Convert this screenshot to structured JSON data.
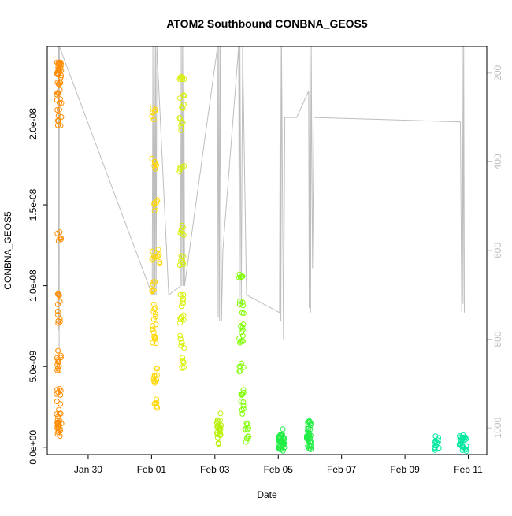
{
  "chart_data": {
    "type": "scatter",
    "title": "ATOM2 Southbound CONBNA_GEOS5",
    "xlabel": "Date",
    "ylabel": "CONBNA_GEOS5",
    "x_ticks": [
      "Jan 30",
      "Feb 01",
      "Feb 03",
      "Feb 05",
      "Feb 07",
      "Feb 09",
      "Feb 11"
    ],
    "y_ticks": [
      "0.0e+00",
      "5.0e-09",
      "1.0e-08",
      "1.5e-08",
      "2.0e-08"
    ],
    "y2_ticks": [
      "200",
      "400",
      "600",
      "800",
      "1000"
    ],
    "xlim": [
      "2017-01-28T17:00",
      "2017-02-11T14:00"
    ],
    "ylim": [
      -4.5e-10,
      2.48e-08
    ],
    "y2lim": [
      1060,
      140
    ],
    "y2_reversed": true,
    "series": [
      {
        "color": "#FF8C00",
        "points": [
          [
            "2017-01-29T02:00",
            2.37e-08
          ],
          [
            "2017-01-29T02:00",
            2.35e-08
          ],
          [
            "2017-01-29T02:00",
            2.33e-08
          ],
          [
            "2017-01-29T01:40",
            2.32e-08
          ],
          [
            "2017-01-29T02:10",
            2.28e-08
          ],
          [
            "2017-01-29T01:30",
            2.22e-08
          ],
          [
            "2017-01-29T02:00",
            2.13e-08
          ],
          [
            "2017-01-29T02:00",
            2.03e-08
          ],
          [
            "2017-01-29T02:00",
            1.31e-08
          ],
          [
            "2017-01-29T02:00",
            9.2e-09
          ],
          [
            "2017-01-29T01:40",
            8.1e-09
          ],
          [
            "2017-01-29T02:00",
            5.7e-09
          ],
          [
            "2017-01-29T01:40",
            5.1e-09
          ],
          [
            "2017-01-29T01:40",
            3.5e-09
          ],
          [
            "2017-01-29T01:40",
            2.4e-09
          ],
          [
            "2017-01-29T02:00",
            1.6e-09
          ],
          [
            "2017-01-29T01:50",
            1.4e-09
          ],
          [
            "2017-01-29T01:40",
            1.1e-09
          ],
          [
            "2017-01-29T02:00",
            1.05e-09
          ]
        ]
      },
      {
        "color": "#FFD700",
        "points": [
          [
            "2017-02-01T02:00",
            2.06e-08
          ],
          [
            "2017-02-01T02:00",
            1.75e-08
          ],
          [
            "2017-02-01T03:00",
            1.5e-08
          ],
          [
            "2017-02-01T02:00",
            1.2e-08
          ],
          [
            "2017-02-01T06:00",
            1.18e-08
          ],
          [
            "2017-02-01T02:00",
            1e-08
          ],
          [
            "2017-02-01T02:00",
            8.5e-09
          ],
          [
            "2017-02-01T02:00",
            7.5e-09
          ],
          [
            "2017-02-01T02:00",
            6.5e-09
          ],
          [
            "2017-02-01T03:00",
            4.7e-09
          ],
          [
            "2017-02-01T03:00",
            3.8e-09
          ],
          [
            "2017-02-01T04:00",
            2.8e-09
          ]
        ]
      },
      {
        "color": "#D7F000",
        "points": [
          [
            "2017-02-01T23:00",
            2.25e-08
          ],
          [
            "2017-02-01T23:00",
            2.14e-08
          ],
          [
            "2017-02-01T23:00",
            2e-08
          ],
          [
            "2017-02-01T23:00",
            1.7e-08
          ],
          [
            "2017-02-01T23:00",
            1.35e-08
          ],
          [
            "2017-02-01T23:00",
            1.15e-08
          ],
          [
            "2017-02-01T23:00",
            9e-09
          ],
          [
            "2017-02-01T23:00",
            8e-09
          ],
          [
            "2017-02-01T23:00",
            6.5e-09
          ],
          [
            "2017-02-01T23:00",
            5.2e-09
          ]
        ]
      },
      {
        "color": "#B7F000",
        "points": [
          [
            "2017-02-03T03:00",
            1.7e-09
          ],
          [
            "2017-02-03T03:00",
            1.3e-09
          ],
          [
            "2017-02-03T03:00",
            1e-09
          ],
          [
            "2017-02-03T03:00",
            6e-10
          ]
        ]
      },
      {
        "color": "#7FFF00",
        "points": [
          [
            "2017-02-03T20:00",
            1.05e-08
          ],
          [
            "2017-02-03T20:00",
            8.7e-09
          ],
          [
            "2017-02-03T20:00",
            7.5e-09
          ],
          [
            "2017-02-03T20:00",
            6.5e-09
          ],
          [
            "2017-02-03T20:00",
            5e-09
          ],
          [
            "2017-02-03T20:00",
            3.5e-09
          ],
          [
            "2017-02-03T20:00",
            2.5e-09
          ],
          [
            "2017-02-04T00:00",
            1.5e-09
          ],
          [
            "2017-02-04T00:00",
            7e-10
          ]
        ]
      },
      {
        "color": "#22EE44",
        "points": [
          [
            "2017-02-05T02:00",
            7e-10
          ],
          [
            "2017-02-05T02:00",
            3e-10
          ],
          [
            "2017-02-05T03:00",
            2e-10
          ],
          [
            "2017-02-05T23:00",
            1.2e-09
          ],
          [
            "2017-02-05T23:00",
            5e-10
          ],
          [
            "2017-02-05T23:00",
            2e-10
          ]
        ]
      },
      {
        "color": "#00E8A0",
        "points": [
          [
            "2017-02-10T00:00",
            2.5e-10
          ],
          [
            "2017-02-10T19:00",
            3.5e-10
          ],
          [
            "2017-02-10T21:00",
            2e-10
          ]
        ]
      }
    ],
    "pressure_line_color": "#BEBEBE"
  }
}
